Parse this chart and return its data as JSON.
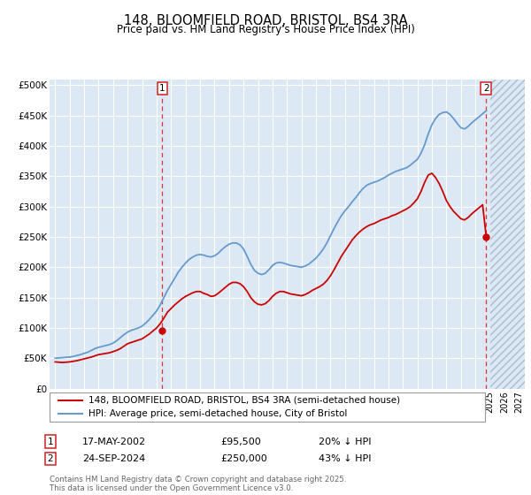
{
  "title": "148, BLOOMFIELD ROAD, BRISTOL, BS4 3RA",
  "subtitle": "Price paid vs. HM Land Registry's House Price Index (HPI)",
  "ylim": [
    0,
    510000
  ],
  "yticks": [
    0,
    50000,
    100000,
    150000,
    200000,
    250000,
    300000,
    350000,
    400000,
    450000,
    500000
  ],
  "ytick_labels": [
    "£0",
    "£50K",
    "£100K",
    "£150K",
    "£200K",
    "£250K",
    "£300K",
    "£350K",
    "£400K",
    "£450K",
    "£500K"
  ],
  "xlim_start": 1994.6,
  "xlim_end": 2027.4,
  "background_color": "#dce9f5",
  "hatch_color": "#c8d8e8",
  "grid_color": "#ffffff",
  "red_line_color": "#cc0000",
  "blue_line_color": "#6699cc",
  "dashed_line_color": "#dd3333",
  "purchase1_x": 2002.38,
  "purchase1_y": 95500,
  "purchase2_x": 2024.73,
  "purchase2_y": 250000,
  "purchase1_date": "17-MAY-2002",
  "purchase1_price": "£95,500",
  "purchase1_hpi": "20% ↓ HPI",
  "purchase2_date": "24-SEP-2024",
  "purchase2_price": "£250,000",
  "purchase2_hpi": "43% ↓ HPI",
  "legend1": "148, BLOOMFIELD ROAD, BRISTOL, BS4 3RA (semi-detached house)",
  "legend2": "HPI: Average price, semi-detached house, City of Bristol",
  "footer": "Contains HM Land Registry data © Crown copyright and database right 2025.\nThis data is licensed under the Open Government Licence v3.0.",
  "hpi_years": [
    1995.0,
    1995.25,
    1995.5,
    1995.75,
    1996.0,
    1996.25,
    1996.5,
    1996.75,
    1997.0,
    1997.25,
    1997.5,
    1997.75,
    1998.0,
    1998.25,
    1998.5,
    1998.75,
    1999.0,
    1999.25,
    1999.5,
    1999.75,
    2000.0,
    2000.25,
    2000.5,
    2000.75,
    2001.0,
    2001.25,
    2001.5,
    2001.75,
    2002.0,
    2002.25,
    2002.5,
    2002.75,
    2003.0,
    2003.25,
    2003.5,
    2003.75,
    2004.0,
    2004.25,
    2004.5,
    2004.75,
    2005.0,
    2005.25,
    2005.5,
    2005.75,
    2006.0,
    2006.25,
    2006.5,
    2006.75,
    2007.0,
    2007.25,
    2007.5,
    2007.75,
    2008.0,
    2008.25,
    2008.5,
    2008.75,
    2009.0,
    2009.25,
    2009.5,
    2009.75,
    2010.0,
    2010.25,
    2010.5,
    2010.75,
    2011.0,
    2011.25,
    2011.5,
    2011.75,
    2012.0,
    2012.25,
    2012.5,
    2012.75,
    2013.0,
    2013.25,
    2013.5,
    2013.75,
    2014.0,
    2014.25,
    2014.5,
    2014.75,
    2015.0,
    2015.25,
    2015.5,
    2015.75,
    2016.0,
    2016.25,
    2016.5,
    2016.75,
    2017.0,
    2017.25,
    2017.5,
    2017.75,
    2018.0,
    2018.25,
    2018.5,
    2018.75,
    2019.0,
    2019.25,
    2019.5,
    2019.75,
    2020.0,
    2020.25,
    2020.5,
    2020.75,
    2021.0,
    2021.25,
    2021.5,
    2021.75,
    2022.0,
    2022.25,
    2022.5,
    2022.75,
    2023.0,
    2023.25,
    2023.5,
    2023.75,
    2024.0,
    2024.25,
    2024.5,
    2024.75
  ],
  "hpi_values": [
    50000,
    50500,
    51000,
    51500,
    52000,
    53000,
    54500,
    56000,
    58000,
    60000,
    63000,
    66000,
    68000,
    69500,
    71000,
    72500,
    75000,
    79000,
    84000,
    89000,
    93000,
    96000,
    98000,
    100000,
    103000,
    108000,
    114000,
    121000,
    128000,
    138000,
    150000,
    162000,
    172000,
    182000,
    192000,
    200000,
    207000,
    213000,
    217000,
    220000,
    221000,
    220000,
    218000,
    217000,
    219000,
    223000,
    229000,
    234000,
    238000,
    240000,
    240000,
    237000,
    230000,
    218000,
    205000,
    195000,
    190000,
    188000,
    190000,
    196000,
    203000,
    207000,
    208000,
    207000,
    205000,
    203000,
    202000,
    201000,
    200000,
    202000,
    205000,
    210000,
    215000,
    222000,
    230000,
    240000,
    252000,
    264000,
    275000,
    285000,
    293000,
    300000,
    308000,
    315000,
    323000,
    330000,
    335000,
    338000,
    340000,
    342000,
    345000,
    348000,
    352000,
    355000,
    358000,
    360000,
    362000,
    364000,
    368000,
    373000,
    378000,
    388000,
    402000,
    420000,
    435000,
    445000,
    452000,
    455000,
    456000,
    452000,
    445000,
    437000,
    430000,
    428000,
    432000,
    438000,
    443000,
    448000,
    453000,
    458000
  ],
  "red_years": [
    1995.0,
    1995.25,
    1995.5,
    1995.75,
    1996.0,
    1996.25,
    1996.5,
    1996.75,
    1997.0,
    1997.25,
    1997.5,
    1997.75,
    1998.0,
    1998.25,
    1998.5,
    1998.75,
    1999.0,
    1999.25,
    1999.5,
    1999.75,
    2000.0,
    2000.25,
    2000.5,
    2000.75,
    2001.0,
    2001.25,
    2001.5,
    2001.75,
    2002.0,
    2002.25,
    2002.5,
    2002.75,
    2003.0,
    2003.25,
    2003.5,
    2003.75,
    2004.0,
    2004.25,
    2004.5,
    2004.75,
    2005.0,
    2005.25,
    2005.5,
    2005.75,
    2006.0,
    2006.25,
    2006.5,
    2006.75,
    2007.0,
    2007.25,
    2007.5,
    2007.75,
    2008.0,
    2008.25,
    2008.5,
    2008.75,
    2009.0,
    2009.25,
    2009.5,
    2009.75,
    2010.0,
    2010.25,
    2010.5,
    2010.75,
    2011.0,
    2011.25,
    2011.5,
    2011.75,
    2012.0,
    2012.25,
    2012.5,
    2012.75,
    2013.0,
    2013.25,
    2013.5,
    2013.75,
    2014.0,
    2014.25,
    2014.5,
    2014.75,
    2015.0,
    2015.25,
    2015.5,
    2015.75,
    2016.0,
    2016.25,
    2016.5,
    2016.75,
    2017.0,
    2017.25,
    2017.5,
    2017.75,
    2018.0,
    2018.25,
    2018.5,
    2018.75,
    2019.0,
    2019.25,
    2019.5,
    2019.75,
    2020.0,
    2020.25,
    2020.5,
    2020.75,
    2021.0,
    2021.25,
    2021.5,
    2021.75,
    2022.0,
    2022.25,
    2022.5,
    2022.75,
    2023.0,
    2023.25,
    2023.5,
    2023.75,
    2024.0,
    2024.25,
    2024.5,
    2024.75
  ],
  "red_values": [
    44000,
    43500,
    43000,
    43500,
    44000,
    45000,
    46000,
    47500,
    49000,
    50500,
    52000,
    54000,
    56000,
    57000,
    58000,
    59000,
    61000,
    63000,
    66000,
    70000,
    74000,
    76000,
    78000,
    80000,
    82000,
    86000,
    90000,
    95000,
    100000,
    107000,
    116000,
    126000,
    132000,
    138000,
    143000,
    148000,
    152000,
    155000,
    158000,
    160000,
    160000,
    157000,
    155000,
    152000,
    153000,
    157000,
    162000,
    167000,
    172000,
    175000,
    175000,
    173000,
    168000,
    160000,
    150000,
    143000,
    139000,
    138000,
    140000,
    145000,
    152000,
    157000,
    160000,
    160000,
    158000,
    156000,
    155000,
    154000,
    153000,
    155000,
    158000,
    162000,
    165000,
    168000,
    172000,
    178000,
    186000,
    196000,
    207000,
    218000,
    227000,
    236000,
    245000,
    252000,
    258000,
    263000,
    267000,
    270000,
    272000,
    275000,
    278000,
    280000,
    282000,
    285000,
    287000,
    290000,
    293000,
    296000,
    300000,
    306000,
    313000,
    325000,
    340000,
    352000,
    355000,
    348000,
    338000,
    325000,
    310000,
    300000,
    292000,
    286000,
    280000,
    278000,
    282000,
    288000,
    293000,
    298000,
    303000,
    250000
  ]
}
